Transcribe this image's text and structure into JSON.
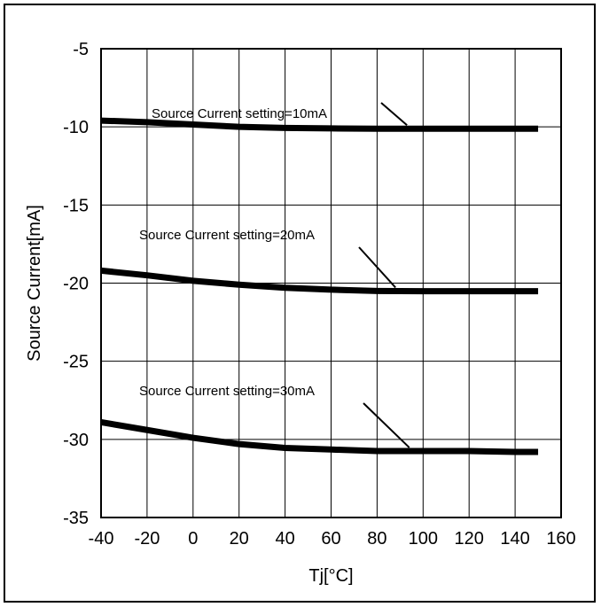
{
  "chart_data": {
    "type": "line",
    "xlabel": "Tj[°C]",
    "ylabel": "Source Current[mA]",
    "xlim": [
      -40,
      160
    ],
    "ylim": [
      -35,
      -5
    ],
    "xticks": [
      -40,
      -20,
      0,
      20,
      40,
      60,
      80,
      100,
      120,
      140,
      160
    ],
    "yticks": [
      -5,
      -10,
      -15,
      -20,
      -25,
      -30,
      -35
    ],
    "grid": true,
    "series_color": "#000000",
    "series": [
      {
        "annotation": "Source Current setting=10mA",
        "x": [
          -40,
          -20,
          0,
          20,
          40,
          60,
          80,
          100,
          120,
          140,
          150
        ],
        "y": [
          -9.6,
          -9.7,
          -9.85,
          -10.0,
          -10.07,
          -10.1,
          -10.12,
          -10.12,
          -10.12,
          -10.12,
          -10.12
        ]
      },
      {
        "annotation": "Source Current setting=20mA",
        "x": [
          -40,
          -20,
          0,
          20,
          40,
          60,
          80,
          100,
          120,
          140,
          150
        ],
        "y": [
          -19.2,
          -19.5,
          -19.85,
          -20.1,
          -20.3,
          -20.42,
          -20.5,
          -20.52,
          -20.52,
          -20.52,
          -20.52
        ]
      },
      {
        "annotation": "Source Current setting=30mA",
        "x": [
          -40,
          -20,
          0,
          20,
          40,
          60,
          80,
          100,
          120,
          140,
          150
        ],
        "y": [
          -28.9,
          -29.4,
          -29.9,
          -30.3,
          -30.55,
          -30.65,
          -30.75,
          -30.75,
          -30.75,
          -30.8,
          -30.8
        ]
      }
    ]
  }
}
